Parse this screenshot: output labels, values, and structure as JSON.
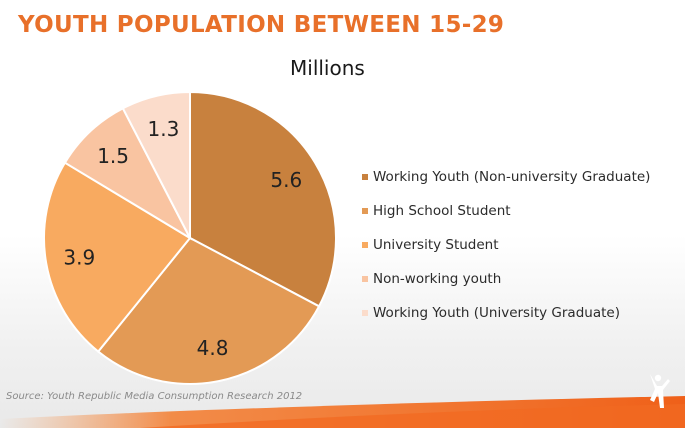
{
  "header": {
    "title": "YOUTH POPULATION BETWEEN 15-29",
    "subtitle": "Millions"
  },
  "source": "Source: Youth Republic Media Consumption Research 2012",
  "chart_data": {
    "type": "pie",
    "title": "YOUTH POPULATION BETWEEN 15-29",
    "subtitle": "Millions",
    "legend_position": "right",
    "slices": [
      {
        "label": "Working Youth (Non-university Graduate)",
        "value": 5.6,
        "value_label": "5.6",
        "color": "#c8813e"
      },
      {
        "label": "High School Student",
        "value": 4.8,
        "value_label": "4.8",
        "color": "#e39a55"
      },
      {
        "label": "University Student",
        "value": 3.9,
        "value_label": "3.9",
        "color": "#f8aa60"
      },
      {
        "label": "Non-working youth",
        "value": 1.5,
        "value_label": "1.5",
        "color": "#f9c4a1"
      },
      {
        "label": "Working Youth (University Graduate)",
        "value": 1.3,
        "value_label": "1.3",
        "color": "#fbdccb"
      }
    ]
  },
  "theme": {
    "accent": "#e8702a",
    "footer_band": "#f26a21"
  },
  "logo_icon": "figure-icon"
}
